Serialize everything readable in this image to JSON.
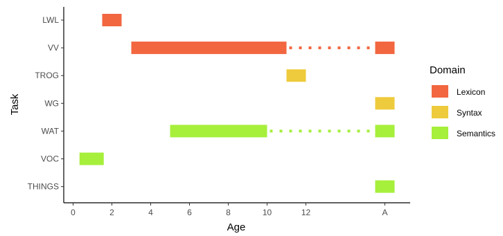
{
  "chart_data": {
    "type": "range-bar",
    "xlabel": "Age",
    "ylabel": "Task",
    "x_ticks": [
      "0",
      "2",
      "4",
      "6",
      "8",
      "10",
      "12",
      "A"
    ],
    "categories": [
      "LWL",
      "VV",
      "TROG",
      "WG",
      "WAT",
      "VOC",
      "THINGS"
    ],
    "legend": {
      "title": "Domain",
      "position": "right",
      "entries": [
        {
          "label": "Lexicon",
          "color": "#f26640"
        },
        {
          "label": "Syntax",
          "color": "#eecb3c"
        },
        {
          "label": "Semantics",
          "color": "#a6ef3b"
        }
      ]
    },
    "bars": [
      {
        "task": "LWL",
        "domain": "Lexicon",
        "start": 1.5,
        "end": 2.5
      },
      {
        "task": "VV",
        "domain": "Lexicon",
        "start": 3,
        "end": 11,
        "continues_to": "A"
      },
      {
        "task": "VV",
        "domain": "Lexicon",
        "start": "A",
        "end": "A"
      },
      {
        "task": "TROG",
        "domain": "Syntax",
        "start": 11,
        "end": 12
      },
      {
        "task": "WG",
        "domain": "Syntax",
        "start": "A",
        "end": "A"
      },
      {
        "task": "WAT",
        "domain": "Semantics",
        "start": 5,
        "end": 10,
        "continues_to": "A"
      },
      {
        "task": "WAT",
        "domain": "Semantics",
        "start": "A",
        "end": "A"
      },
      {
        "task": "VOC",
        "domain": "Semantics",
        "start": 0.33,
        "end": 1.58
      },
      {
        "task": "THINGS",
        "domain": "Semantics",
        "start": "A",
        "end": "A"
      }
    ],
    "grid": false
  }
}
